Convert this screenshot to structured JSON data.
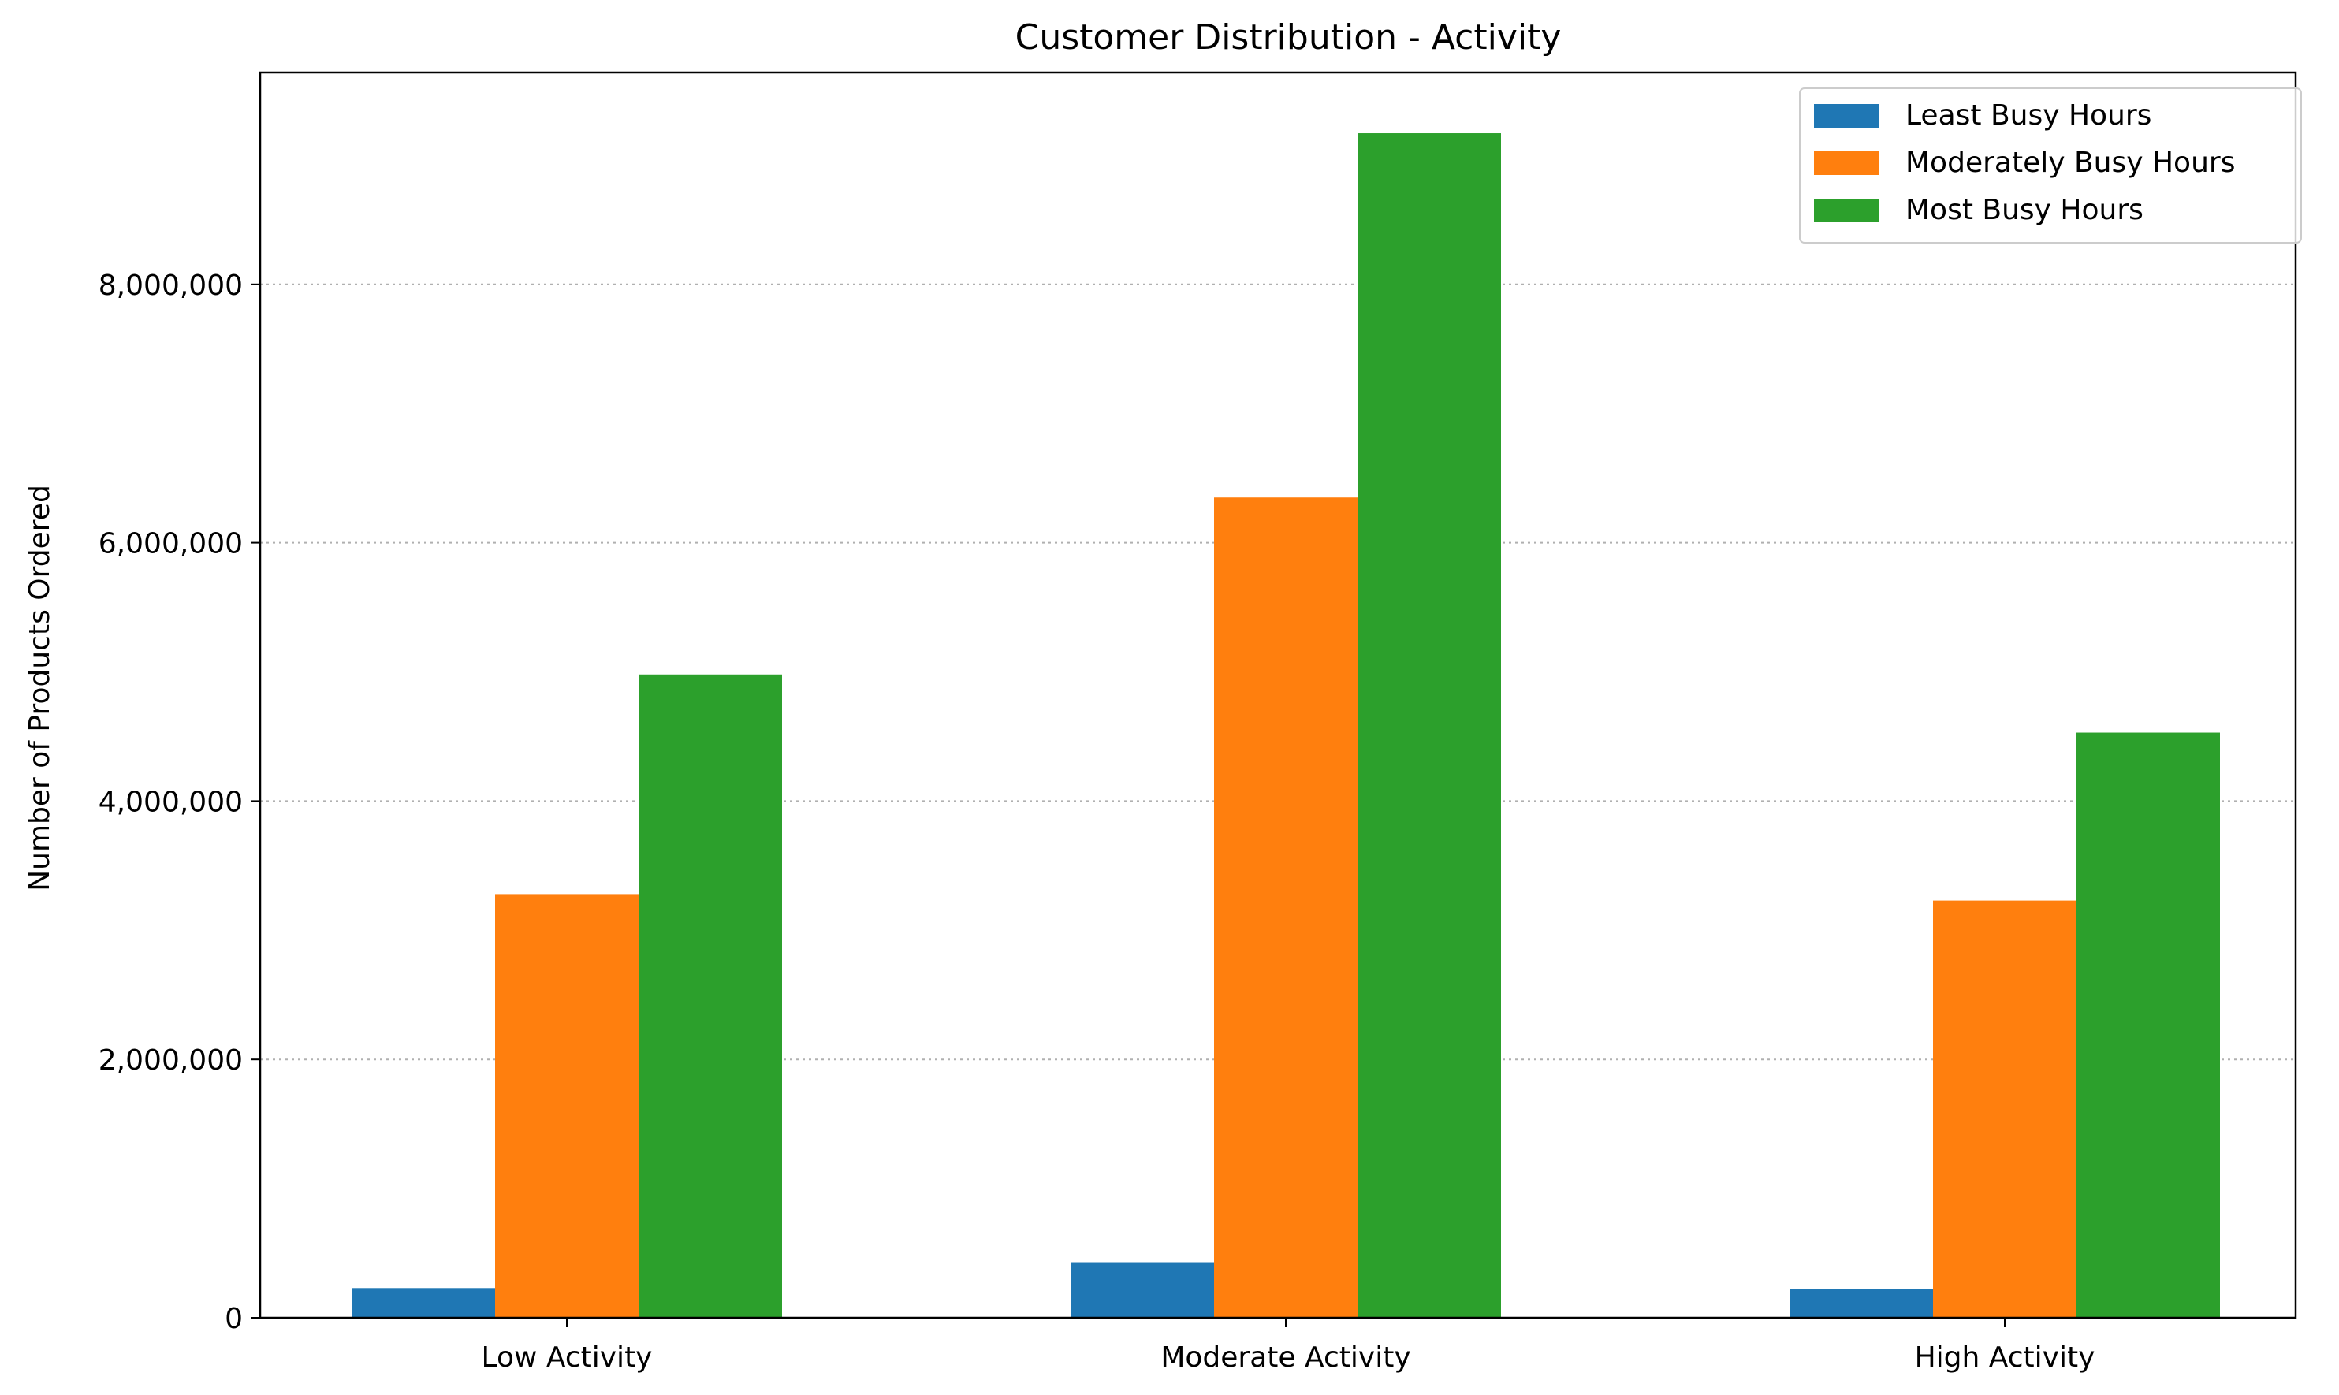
{
  "chart_data": {
    "type": "bar",
    "title": "Customer Distribution - Activity",
    "xlabel": "",
    "ylabel": "Number of Products Ordered",
    "categories": [
      "Low Activity",
      "Moderate Activity",
      "High Activity"
    ],
    "series": [
      {
        "name": "Least Busy Hours",
        "color": "#1f77b4",
        "values": [
          230000,
          430000,
          220000
        ]
      },
      {
        "name": "Moderately Busy Hours",
        "color": "#ff7f0e",
        "values": [
          3280000,
          6350000,
          3230000
        ]
      },
      {
        "name": "Most Busy Hours",
        "color": "#2ca02c",
        "values": [
          4980000,
          9170000,
          4530000
        ]
      }
    ],
    "ylim": [
      0,
      9640000
    ],
    "yticks": [
      0,
      2000000,
      4000000,
      6000000,
      8000000
    ],
    "ytick_labels": [
      "0",
      "2,000,000",
      "4,000,000",
      "6,000,000",
      "8,000,000"
    ],
    "grid": "y, dotted",
    "legend_position": "upper right"
  }
}
